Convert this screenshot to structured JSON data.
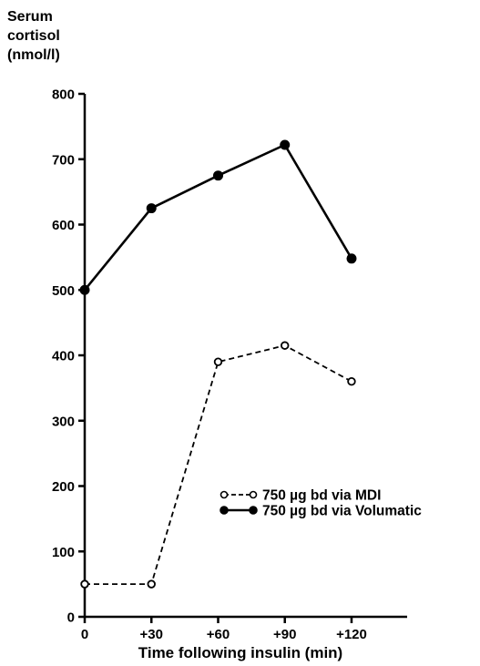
{
  "chart_data": {
    "type": "line",
    "ylabel_lines": [
      "Serum",
      "cortisol",
      "(nmol/l)"
    ],
    "xlabel": "Time following insulin (min)",
    "categories": [
      "0",
      "+30",
      "+60",
      "+90",
      "+120"
    ],
    "x": [
      0,
      30,
      60,
      90,
      120
    ],
    "yticks": [
      0,
      100,
      200,
      300,
      400,
      500,
      600,
      700,
      800
    ],
    "ylim": [
      0,
      800
    ],
    "xlim": [
      0,
      145
    ],
    "grid": false,
    "legend_position": "right",
    "series": [
      {
        "name": "750 µg bd via MDI",
        "values": [
          50,
          50,
          390,
          415,
          360
        ],
        "marker": "open-circle",
        "line": "dashed",
        "color": "#000000"
      },
      {
        "name": "750 µg bd via Volumatic",
        "values": [
          500,
          625,
          675,
          722,
          548
        ],
        "marker": "filled-circle",
        "line": "solid",
        "color": "#000000"
      }
    ]
  }
}
